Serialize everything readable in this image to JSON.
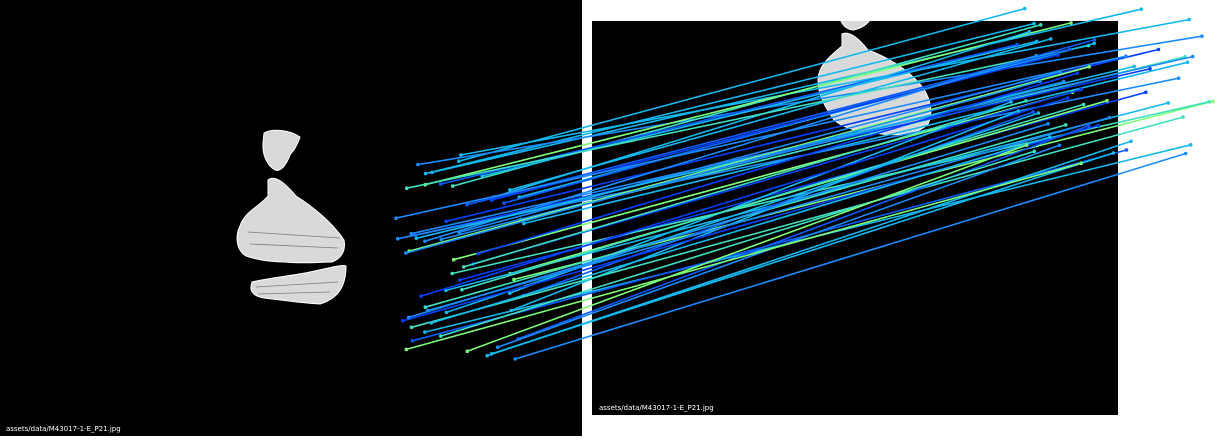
{
  "left_image": {
    "caption": "assets/data/M43017-1-E_P21.jpg"
  },
  "right_image": {
    "caption": "assets/data/M43017-1-E_P21.jpg"
  },
  "colors": {
    "background": "#000000",
    "separator": "#ffffff",
    "match_palette": [
      "#1a8cff",
      "#0a5cff",
      "#12b8f0",
      "#3fe0c0",
      "#7dff7a",
      "#0040ff"
    ],
    "fragment_fill": "#d0d0d0"
  },
  "icons": [
    "fragment-shape"
  ]
}
